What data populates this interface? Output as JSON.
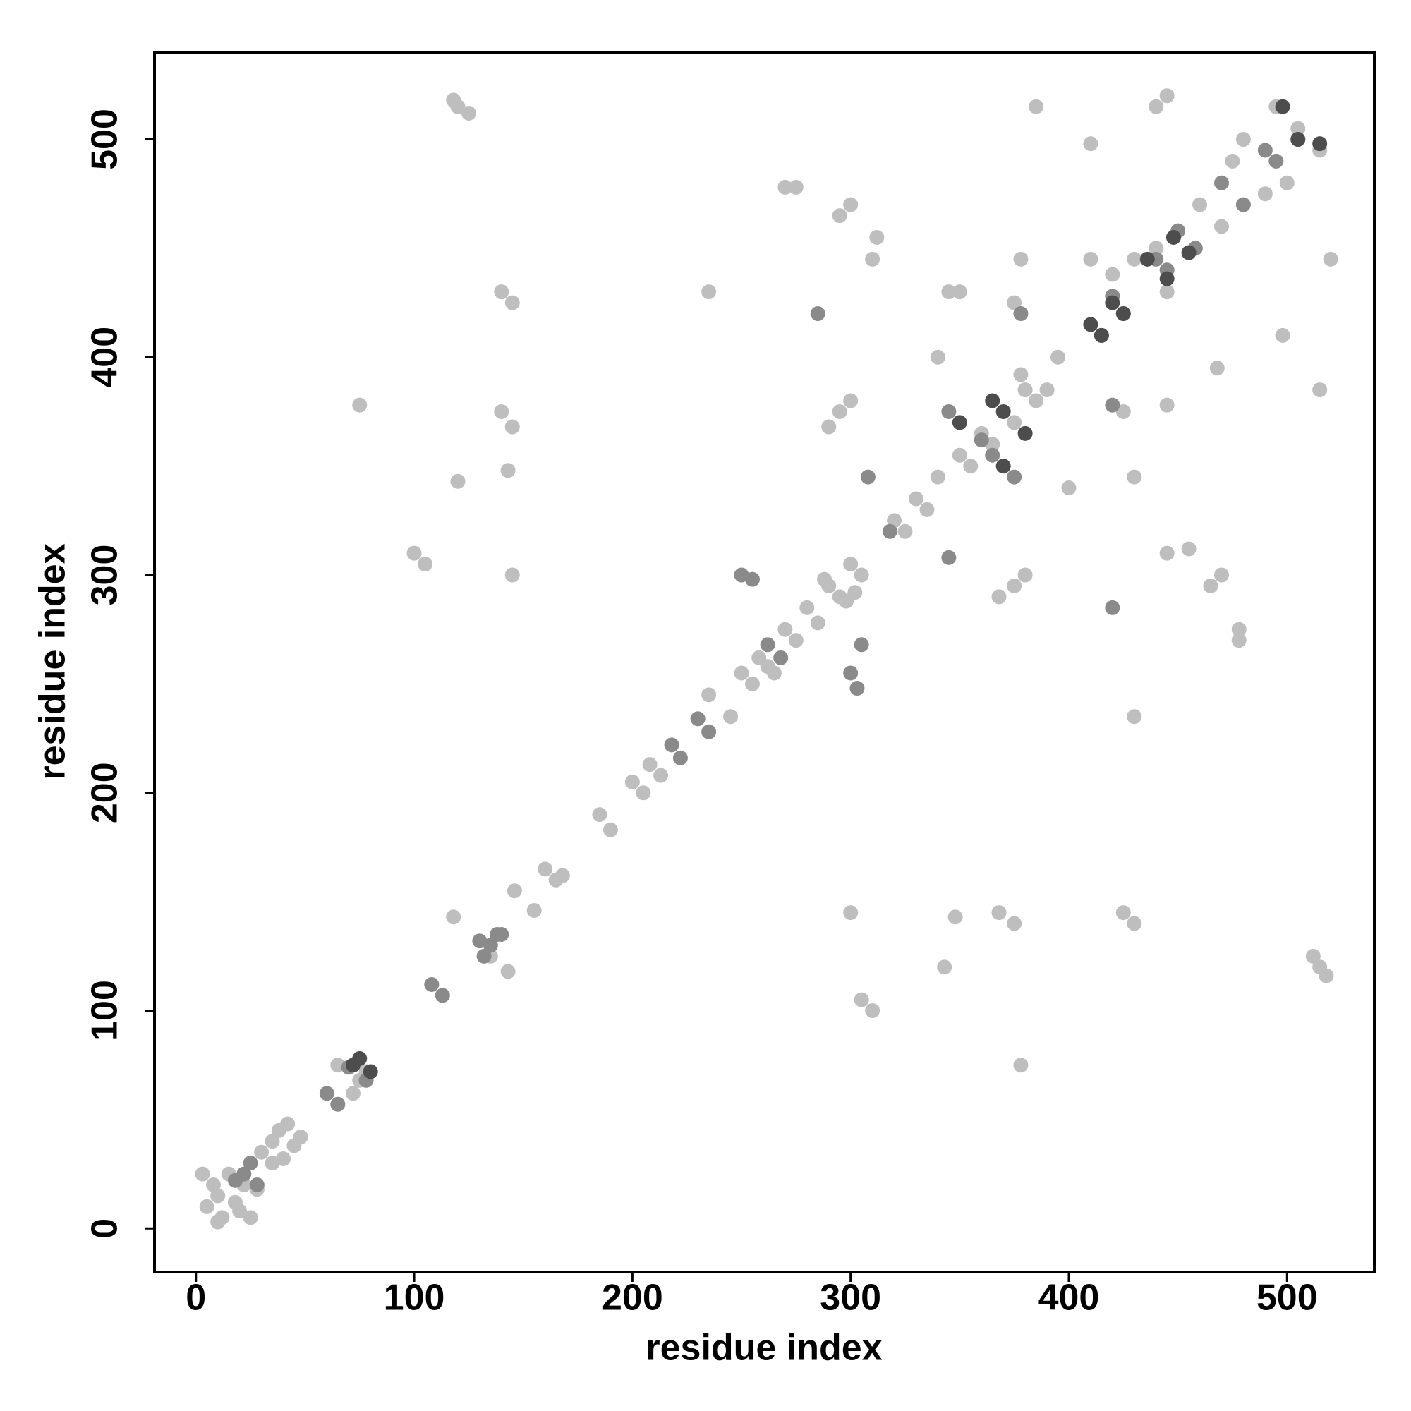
{
  "chart_data": {
    "type": "scatter",
    "x_label": "residue index",
    "y_label": "residue index",
    "xlim": [
      -19,
      540
    ],
    "ylim": [
      -20,
      540
    ],
    "xticks": [
      0,
      100,
      200,
      300,
      400,
      500
    ],
    "yticks": [
      0,
      100,
      200,
      300,
      400,
      500
    ],
    "series": [
      {
        "color": "#bebebe",
        "x": [
          5,
          8,
          10,
          12,
          15,
          18,
          20,
          25,
          3,
          22,
          10,
          28,
          30,
          35,
          38,
          42,
          40,
          45,
          48,
          35,
          65,
          75,
          78,
          72,
          118,
          135,
          143,
          146,
          155,
          160,
          165,
          168,
          185,
          190,
          200,
          205,
          208,
          213,
          235,
          245,
          250,
          255,
          258,
          262,
          265,
          270,
          275,
          280,
          285,
          290,
          295,
          300,
          305,
          298,
          288,
          302,
          320,
          325,
          330,
          335,
          340,
          350,
          355,
          360,
          365,
          370,
          375,
          380,
          385,
          390,
          378,
          410,
          420,
          430,
          445,
          440,
          460,
          470,
          475,
          490,
          480,
          500,
          495,
          515,
          505,
          120,
          125,
          118,
          515,
          512,
          518,
          140,
          145,
          430,
          425,
          140,
          145,
          375,
          368,
          100,
          105,
          310,
          305,
          145,
          300,
          143,
          348,
          120,
          343,
          75,
          378,
          235,
          430,
          275,
          478,
          270,
          478,
          295,
          465,
          300,
          470,
          310,
          445,
          312,
          455,
          295,
          375,
          290,
          368,
          300,
          380,
          375,
          425,
          378,
          445,
          385,
          515,
          445,
          520,
          440,
          345,
          430,
          350,
          395,
          410,
          468,
          498,
          400,
          340
        ],
        "values": [
          10,
          20,
          15,
          5,
          25,
          12,
          8,
          5,
          25,
          20,
          3,
          18,
          35,
          40,
          45,
          48,
          32,
          38,
          42,
          30,
          75,
          68,
          72,
          62,
          143,
          125,
          118,
          155,
          146,
          165,
          160,
          162,
          190,
          183,
          205,
          200,
          213,
          208,
          245,
          235,
          255,
          250,
          262,
          258,
          255,
          275,
          270,
          285,
          278,
          295,
          290,
          305,
          300,
          288,
          298,
          292,
          325,
          320,
          335,
          330,
          345,
          355,
          350,
          365,
          360,
          375,
          370,
          385,
          380,
          385,
          392,
          445,
          438,
          445,
          430,
          450,
          470,
          460,
          490,
          475,
          500,
          480,
          515,
          495,
          505,
          515,
          512,
          518,
          120,
          125,
          116,
          430,
          425,
          140,
          145,
          375,
          368,
          140,
          145,
          310,
          305,
          100,
          105,
          300,
          145,
          348,
          143,
          343,
          120,
          378,
          75,
          430,
          235,
          478,
          275,
          478,
          270,
          465,
          295,
          470,
          300,
          445,
          310,
          455,
          312,
          375,
          295,
          368,
          290,
          380,
          300,
          425,
          375,
          445,
          378,
          515,
          385,
          520,
          445,
          515,
          430,
          345,
          430,
          400,
          498,
          395,
          410,
          340,
          400
        ]
      },
      {
        "color": "#8a8a8a",
        "x": [
          22,
          28,
          25,
          18,
          60,
          65,
          70,
          78,
          108,
          113,
          130,
          132,
          138,
          135,
          140,
          218,
          222,
          230,
          235,
          250,
          255,
          262,
          268,
          285,
          420,
          300,
          303,
          305,
          345,
          375,
          360,
          365,
          370,
          378,
          420,
          415,
          420,
          425,
          440,
          445,
          450,
          458,
          470,
          480,
          490,
          495,
          505,
          308,
          345,
          318
        ],
        "values": [
          25,
          20,
          30,
          22,
          62,
          57,
          74,
          68,
          112,
          107,
          132,
          125,
          135,
          130,
          135,
          222,
          216,
          234,
          228,
          300,
          298,
          268,
          262,
          420,
          285,
          255,
          248,
          268,
          375,
          345,
          362,
          355,
          350,
          420,
          378,
          410,
          428,
          420,
          445,
          440,
          458,
          450,
          480,
          470,
          495,
          490,
          500,
          345,
          308,
          320
        ]
      },
      {
        "color": "#4d4d4d",
        "x": [
          72,
          75,
          80,
          365,
          380,
          370,
          410,
          415,
          425,
          420,
          436,
          445,
          448,
          455,
          498,
          515,
          505,
          350,
          370
        ],
        "values": [
          75,
          78,
          72,
          380,
          365,
          375,
          415,
          410,
          420,
          425,
          445,
          436,
          455,
          448,
          515,
          498,
          500,
          370,
          350
        ]
      }
    ]
  }
}
